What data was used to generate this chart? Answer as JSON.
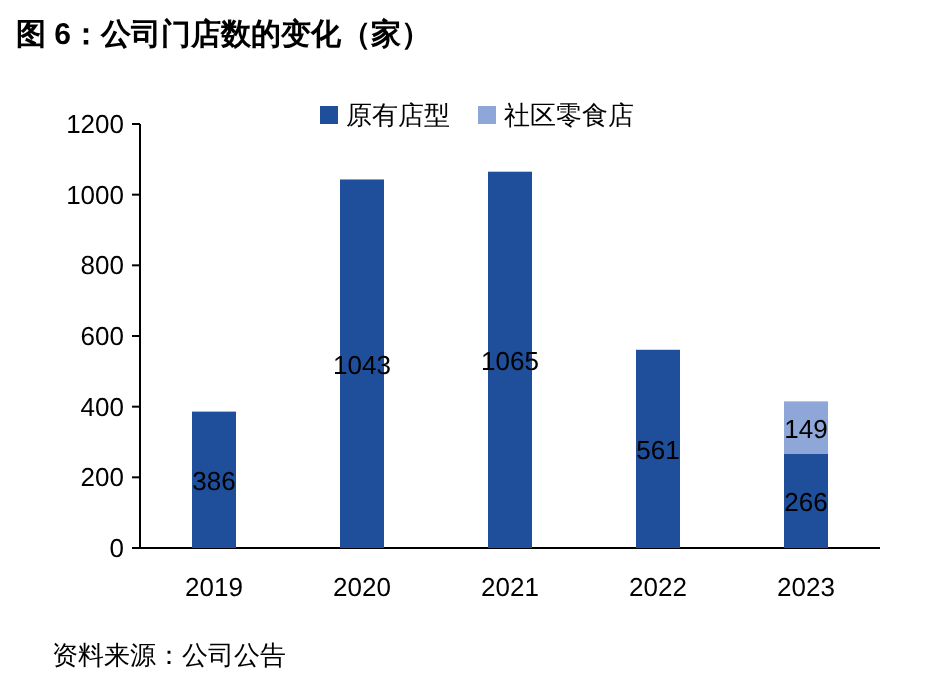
{
  "chart_data": {
    "type": "bar",
    "title": "图 6：公司门店数的变化（家）",
    "categories": [
      "2019",
      "2020",
      "2021",
      "2022",
      "2023"
    ],
    "series": [
      {
        "name": "原有店型",
        "color": "#1f4e9a",
        "values": [
          386,
          1043,
          1065,
          561,
          266
        ]
      },
      {
        "name": "社区零食店",
        "color": "#8ea6d8",
        "values": [
          null,
          null,
          null,
          null,
          149
        ]
      }
    ],
    "stacked": true,
    "data_labels": true,
    "ylim": [
      0,
      1200
    ],
    "yticks": [
      0,
      200,
      400,
      600,
      800,
      1000,
      1200
    ],
    "grid": false,
    "legend": "top",
    "annotations": [
      "资料来源：公司公告"
    ]
  }
}
